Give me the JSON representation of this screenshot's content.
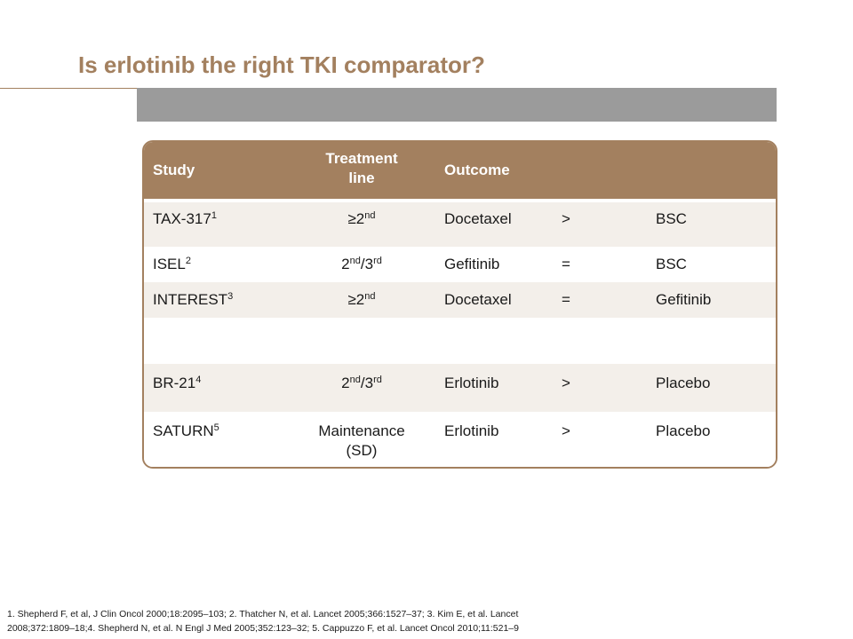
{
  "title": "Is erlotinib the right TKI comparator?",
  "table": {
    "headers": {
      "study": "Study",
      "line_1": "Treatment",
      "line_2": "line",
      "outcome": "Outcome"
    },
    "rows": [
      {
        "study": "TAX-317",
        "study_ref": "1",
        "line": "≥2",
        "line_sup": "nd",
        "drug_a": "Docetaxel",
        "op": ">",
        "drug_b": "BSC"
      },
      {
        "study": "ISEL",
        "study_ref": "2",
        "line_a": "2",
        "line_a_sup": "nd",
        "line_b": "/3",
        "line_b_sup": "rd",
        "drug_a": "Gefitinib",
        "op": "=",
        "drug_b": "BSC"
      },
      {
        "study": "INTEREST",
        "study_ref": "3",
        "line": "≥2",
        "line_sup": "nd",
        "drug_a": "Docetaxel",
        "op": "=",
        "drug_b": "Gefitinib"
      },
      {
        "study": "BR-21",
        "study_ref": "4",
        "line_a": "2",
        "line_a_sup": "nd",
        "line_b": "/3",
        "line_b_sup": "rd",
        "drug_a": "Erlotinib",
        "op": ">",
        "drug_b": "Placebo"
      },
      {
        "study": "SATURN",
        "study_ref": "5",
        "line_1": "Maintenance",
        "line_2": "(SD)",
        "drug_a": "Erlotinib",
        "op": ">",
        "drug_b": "Placebo"
      }
    ]
  },
  "references": {
    "line_1": "1. Shepherd F, et al, J Clin Oncol 2000;18:2095–103;  2. Thatcher N, et al. Lancet 2005;366:1527–37;  3. Kim E, et al. Lancet",
    "line_2": "2008;372:1809–18;4.  Shepherd N, et al. N Engl J Med 2005;352:123–32;  5. Cappuzzo F, et al. Lancet Oncol 2010;11:521–9"
  },
  "colors": {
    "accent": "#a3805f",
    "bar": "#9b9b9b",
    "row_shade": "#f3efea"
  }
}
